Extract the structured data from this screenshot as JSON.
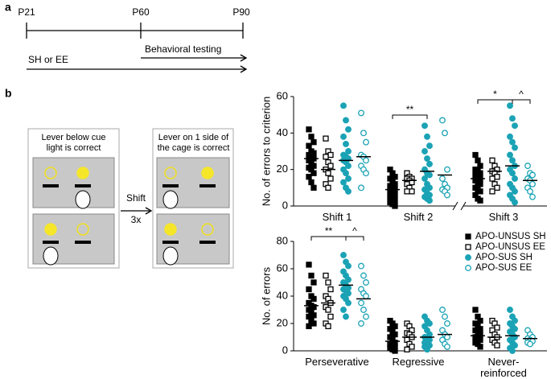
{
  "panel_labels": [
    "a",
    "b"
  ],
  "timeline": {
    "ticks": [
      "P21",
      "P60",
      "P90"
    ],
    "arrows": [
      "Behavioral testing",
      "SH or EE"
    ]
  },
  "diagram": {
    "boxes": [
      "Lever below cue\nlight is correct",
      "Lever on 1 side of\nthe cage is correct"
    ],
    "shift": "Shift",
    "repeat": "3x"
  },
  "chart_data": [
    {
      "type": "strip",
      "ylabel": "No. of  errors to criterion",
      "categories": [
        "Shift 1",
        "Shift 2",
        "Shift 3"
      ],
      "ylim": [
        0,
        60
      ],
      "yticks": [
        0,
        20,
        40,
        60
      ],
      "axis_break": true,
      "annotations": [
        "**",
        "*",
        "^"
      ],
      "series": [
        {
          "color": "#000000",
          "marker": "square",
          "filled": true,
          "values": [
            [
              42,
              38,
              35,
              33,
              30,
              29,
              28,
              27,
              26,
              25,
              24,
              22,
              21,
              20,
              18,
              16,
              13,
              10
            ],
            [
              20,
              18,
              16,
              15,
              13,
              12,
              11,
              10,
              9,
              8,
              7,
              6,
              5,
              4,
              3,
              2,
              1,
              0
            ],
            [
              28,
              25,
              22,
              20,
              19,
              18,
              17,
              16,
              15,
              14,
              13,
              12,
              10,
              9,
              8,
              6,
              4,
              3
            ]
          ],
          "means": [
            26,
            9,
            15
          ]
        },
        {
          "color": "#000000",
          "marker": "square",
          "filled": false,
          "values": [
            [
              37,
              30,
              28,
              27,
              24,
              22,
              20,
              18,
              15,
              12,
              10
            ],
            [
              18,
              16,
              15,
              15,
              14,
              13,
              12,
              10,
              8,
              8
            ],
            [
              25,
              22,
              20,
              19,
              18,
              16,
              15,
              12,
              10,
              8
            ]
          ],
          "means": [
            20,
            14,
            19
          ]
        },
        {
          "color": "#1ba3b5",
          "marker": "circle",
          "filled": true,
          "values": [
            [
              55,
              47,
              42,
              38,
              34,
              30,
              28,
              27,
              26,
              25,
              24,
              22,
              20,
              18,
              15,
              13,
              10,
              8
            ],
            [
              44,
              38,
              33,
              30,
              26,
              23,
              20,
              18,
              17,
              15,
              12,
              10,
              9,
              7,
              6,
              5,
              4,
              3
            ],
            [
              55,
              48,
              44,
              38,
              35,
              32,
              28,
              25,
              22,
              20,
              18,
              15,
              12,
              10,
              8,
              6,
              4,
              2
            ]
          ],
          "means": [
            25,
            19,
            22
          ]
        },
        {
          "color": "#1ba3b5",
          "marker": "circle",
          "filled": false,
          "values": [
            [
              51,
              40,
              35,
              28,
              27,
              25,
              22,
              20,
              18,
              10
            ],
            [
              47,
              40,
              20,
              15,
              12,
              10,
              9,
              8,
              6
            ],
            [
              22,
              18,
              17,
              15,
              14,
              12,
              10,
              8,
              5
            ]
          ],
          "means": [
            27,
            17,
            14
          ]
        }
      ]
    },
    {
      "type": "strip",
      "ylabel": "No. of errors",
      "categories": [
        "Perseverative",
        "Regressive",
        "Never-\nreinforced"
      ],
      "ylim": [
        0,
        80
      ],
      "yticks": [
        0,
        20,
        40,
        60,
        80
      ],
      "legend": "upper right",
      "annotations": [
        "**",
        "^"
      ],
      "series": [
        {
          "name": "APO-UNSUS SH",
          "color": "#000000",
          "marker": "square",
          "filled": true,
          "values": [
            [
              63,
              55,
              50,
              45,
              40,
              38,
              35,
              33,
              32,
              30,
              28,
              26,
              25,
              22,
              20,
              18
            ],
            [
              22,
              20,
              18,
              16,
              14,
              12,
              10,
              8,
              6,
              5,
              4,
              3,
              2,
              1,
              0
            ],
            [
              30,
              25,
              22,
              20,
              18,
              16,
              15,
              14,
              12,
              10,
              9,
              8,
              6,
              5,
              3
            ]
          ],
          "means": [
            33,
            7,
            11
          ]
        },
        {
          "name": "APO-UNSUS EE",
          "color": "#000000",
          "marker": "square",
          "filled": false,
          "values": [
            [
              55,
              50,
              45,
              40,
              38,
              35,
              32,
              30,
              25,
              20,
              18
            ],
            [
              20,
              18,
              15,
              13,
              12,
              10,
              8,
              5,
              3,
              1
            ],
            [
              22,
              20,
              17,
              15,
              12,
              10,
              8,
              6,
              4
            ]
          ],
          "means": [
            35,
            10,
            10
          ]
        },
        {
          "name": "APO-SUS SH",
          "color": "#1ba3b5",
          "marker": "circle",
          "filled": true,
          "values": [
            [
              70,
              65,
              62,
              58,
              55,
              52,
              50,
              48,
              46,
              45,
              44,
              42,
              40,
              38,
              35,
              30,
              25
            ],
            [
              25,
              22,
              20,
              18,
              15,
              12,
              10,
              9,
              8,
              6,
              5,
              4,
              3,
              1
            ],
            [
              30,
              25,
              22,
              20,
              18,
              16,
              14,
              12,
              10,
              8,
              6,
              4,
              2,
              0
            ]
          ],
          "means": [
            48,
            10,
            11
          ]
        },
        {
          "name": "APO-SUS EE",
          "color": "#1ba3b5",
          "marker": "circle",
          "filled": false,
          "values": [
            [
              62,
              55,
              50,
              45,
              42,
              40,
              35,
              30,
              25,
              20
            ],
            [
              30,
              25,
              20,
              15,
              12,
              10,
              8,
              5,
              3
            ],
            [
              15,
              12,
              10,
              9,
              8,
              7,
              6,
              5
            ]
          ],
          "means": [
            38,
            12,
            9
          ]
        }
      ]
    }
  ]
}
